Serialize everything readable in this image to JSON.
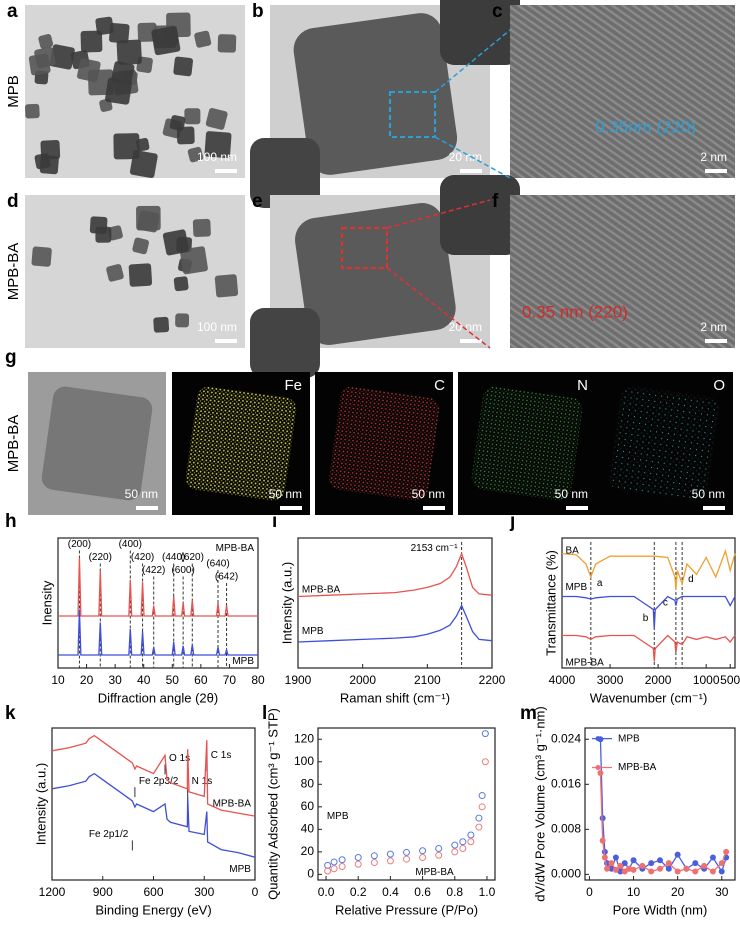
{
  "figure": {
    "rows": [
      {
        "label": "MPB",
        "panels": [
          {
            "letter": "a",
            "scale_bar": "100 nm"
          },
          {
            "letter": "b",
            "scale_bar": "20 nm"
          },
          {
            "letter": "c",
            "scale_bar": "2 nm",
            "annotation": "0.35nm (220)"
          }
        ]
      },
      {
        "label": "MPB-BA",
        "panels": [
          {
            "letter": "d",
            "scale_bar": "100 nm"
          },
          {
            "letter": "e",
            "scale_bar": "20 nm"
          },
          {
            "letter": "f",
            "scale_bar": "2 nm",
            "annotation": "0.35 nm  (220)"
          }
        ]
      },
      {
        "label": "MPB-BA",
        "letter": "g",
        "panels": [
          {
            "scale_bar": "50 nm"
          },
          {
            "element": "Fe",
            "scale_bar": "50 nm"
          },
          {
            "element": "C",
            "scale_bar": "50 nm"
          },
          {
            "element": "N",
            "scale_bar": "50 nm"
          },
          {
            "element": "O",
            "scale_bar": "50 nm"
          }
        ]
      }
    ]
  },
  "chart_data": [
    {
      "type": "line",
      "letter": "h",
      "x_label": "Diffraction angle (2θ)",
      "y_label": "Inensity",
      "xlim": [
        10,
        80
      ],
      "xticks": [
        10,
        20,
        30,
        40,
        50,
        60,
        70,
        80
      ],
      "ylim": [
        0,
        100
      ],
      "x": [
        10,
        17,
        17.5,
        18,
        24.3,
        24.8,
        25.3,
        34.8,
        35.3,
        35.8,
        39.1,
        39.6,
        40.1,
        43,
        43.5,
        44,
        50,
        50.5,
        51,
        53.3,
        53.8,
        54.3,
        56.5,
        57,
        57.5,
        65.5,
        66,
        66.5,
        68.5,
        69,
        69.5,
        80
      ],
      "series": [
        {
          "name": "MPB-BA",
          "color": "#e8534f",
          "values": [
            40,
            40,
            85,
            40,
            40,
            75,
            40,
            40,
            68,
            40,
            40,
            66,
            40,
            40,
            48,
            40,
            40,
            55,
            40,
            40,
            50,
            40,
            40,
            52,
            40,
            40,
            50,
            40,
            40,
            48,
            40,
            40
          ]
        },
        {
          "name": "MPB",
          "color": "#3f4fd8",
          "values": [
            10,
            10,
            45,
            10,
            10,
            35,
            10,
            10,
            30,
            10,
            10,
            28,
            10,
            10,
            16,
            10,
            10,
            20,
            10,
            10,
            17,
            10,
            10,
            18,
            10,
            10,
            16,
            10,
            10,
            14,
            10,
            10
          ]
        }
      ],
      "annotations": [
        {
          "text": "(200)",
          "x": 17.5
        },
        {
          "text": "(220)",
          "x": 24.8
        },
        {
          "text": "(400)",
          "x": 35.3
        },
        {
          "text": "(420)",
          "x": 39.6
        },
        {
          "text": "(422)",
          "x": 43.5
        },
        {
          "text": "(440)",
          "x": 50.5
        },
        {
          "text": "(600)",
          "x": 53.8
        },
        {
          "text": "(620)",
          "x": 57
        },
        {
          "text": "(640)",
          "x": 66
        },
        {
          "text": "(642)",
          "x": 69
        }
      ]
    },
    {
      "type": "line",
      "letter": "i",
      "x_label": "Raman shift (cm⁻¹)",
      "y_label": "Intensity (a.u.)",
      "xlim": [
        1900,
        2200
      ],
      "xticks": [
        1900,
        2000,
        2100,
        2200
      ],
      "ylim": [
        0,
        100
      ],
      "x": [
        1900,
        1950,
        2000,
        2050,
        2080,
        2100,
        2120,
        2135,
        2145,
        2153,
        2160,
        2170,
        2180,
        2200
      ],
      "series": [
        {
          "name": "MPB-BA",
          "color": "#e8534f",
          "values": [
            55,
            56,
            57,
            58,
            60,
            62,
            65,
            70,
            78,
            88,
            78,
            62,
            57,
            56
          ]
        },
        {
          "name": "MPB",
          "color": "#3f4fd8",
          "values": [
            20,
            21,
            22,
            23,
            24,
            26,
            29,
            33,
            40,
            48,
            40,
            28,
            22,
            21
          ]
        }
      ],
      "annotations": [
        {
          "text": "2153 cm⁻¹",
          "x": 2153
        }
      ]
    },
    {
      "type": "line",
      "letter": "j",
      "x_label": "Wavenumber (cm⁻¹)",
      "y_label": "Transmittance (%)",
      "xlim": [
        4000,
        400
      ],
      "xticks": [
        4000,
        3000,
        2000,
        1000,
        500
      ],
      "ylim": [
        0,
        100
      ],
      "x": [
        4000,
        3700,
        3500,
        3400,
        3300,
        3000,
        2500,
        2100,
        2080,
        2060,
        1800,
        1650,
        1630,
        1600,
        1500,
        1400,
        1200,
        1000,
        800,
        600,
        500,
        400
      ],
      "series": [
        {
          "name": "BA",
          "color": "#f0a030",
          "values": [
            88,
            87,
            80,
            70,
            80,
            86,
            86,
            86,
            86,
            86,
            85,
            70,
            60,
            75,
            65,
            80,
            72,
            85,
            70,
            90,
            75,
            88
          ]
        },
        {
          "name": "MPB",
          "color": "#3f4fd8",
          "values": [
            55,
            55,
            54,
            53,
            54,
            55,
            55,
            45,
            30,
            45,
            55,
            52,
            48,
            53,
            55,
            55,
            55,
            55,
            55,
            55,
            48,
            55
          ]
        },
        {
          "name": "MPB-BA",
          "color": "#e8534f",
          "values": [
            25,
            25,
            24,
            22,
            24,
            25,
            25,
            15,
            5,
            15,
            25,
            20,
            12,
            20,
            18,
            24,
            22,
            24,
            22,
            24,
            20,
            25
          ]
        }
      ],
      "annotations": [
        {
          "text": "a",
          "x": 3400
        },
        {
          "text": "b",
          "x": 2080
        },
        {
          "text": "c",
          "x": 1630
        },
        {
          "text": "d",
          "x": 1500
        }
      ]
    },
    {
      "type": "line",
      "letter": "k",
      "x_label": "Binding Energy (eV)",
      "y_label": "Intensity (a.u.)",
      "xlim": [
        1200,
        0
      ],
      "xticks": [
        1200,
        900,
        600,
        300,
        0
      ],
      "ylim": [
        0,
        100
      ],
      "x": [
        1200,
        1100,
        1000,
        980,
        950,
        900,
        800,
        725,
        710,
        700,
        600,
        532,
        520,
        500,
        400,
        398,
        390,
        300,
        285,
        280,
        200,
        100,
        0
      ],
      "series": [
        {
          "name": "MPB-BA",
          "color": "#e8534f",
          "values": [
            85,
            87,
            90,
            93,
            95,
            91,
            83,
            77,
            73,
            75,
            70,
            82,
            66,
            64,
            60,
            86,
            58,
            55,
            92,
            50,
            46,
            44,
            42
          ]
        },
        {
          "name": "MPB",
          "color": "#3f4fd8",
          "values": [
            60,
            62,
            65,
            68,
            70,
            66,
            58,
            52,
            48,
            50,
            45,
            50,
            40,
            38,
            35,
            55,
            32,
            30,
            45,
            25,
            20,
            18,
            15
          ]
        }
      ],
      "annotations": [
        {
          "text": "Fe 2p1/2",
          "x": 725
        },
        {
          "text": "Fe 2p3/2",
          "x": 710
        },
        {
          "text": "O 1s",
          "x": 532
        },
        {
          "text": "N 1s",
          "x": 398
        },
        {
          "text": "C 1s",
          "x": 285
        }
      ]
    },
    {
      "type": "scatter",
      "letter": "l",
      "x_label": "Relative Pressure (P/Po)",
      "y_label": "Quantity Adsorbed (cm³ g⁻¹ STP)",
      "xlim": [
        -0.05,
        1.05
      ],
      "xticks": [
        {
          "value": 0,
          "label": "0.0"
        },
        0.2,
        0.4,
        0.6,
        0.8,
        {
          "value": 1,
          "label": "1.0"
        }
      ],
      "ylim": [
        -5,
        130
      ],
      "yticks": [
        0,
        20,
        40,
        60,
        80,
        100,
        120
      ],
      "x": [
        0.01,
        0.05,
        0.1,
        0.2,
        0.3,
        0.4,
        0.5,
        0.6,
        0.7,
        0.8,
        0.85,
        0.9,
        0.95,
        0.97,
        0.99
      ],
      "series": [
        {
          "name": "MPB",
          "color": "#5a78e0",
          "values": [
            8,
            11,
            13,
            15,
            16.5,
            18,
            19.5,
            21,
            23,
            26,
            29,
            35,
            50,
            70,
            125
          ]
        },
        {
          "name": "MPB-BA",
          "color": "#ee7d7d",
          "values": [
            3,
            5,
            7,
            9,
            10.5,
            12,
            13.5,
            15,
            17,
            20,
            23,
            29,
            42,
            60,
            100
          ]
        }
      ]
    },
    {
      "type": "line",
      "letter": "m",
      "x_label": "Pore Width (nm)",
      "y_label": "dV/dW Pore Volume (cm³ g⁻¹·nm)",
      "markers": true,
      "legend": true,
      "xlim": [
        -1,
        33
      ],
      "xticks": [
        0,
        10,
        20,
        30
      ],
      "ylim": [
        -0.001,
        0.026
      ],
      "yticks": [
        {
          "value": 0,
          "label": "0.000"
        },
        0.008,
        0.016,
        0.024
      ],
      "x": [
        2.5,
        3,
        3.5,
        4,
        5,
        6,
        7,
        8,
        9,
        10,
        12,
        14,
        16,
        18,
        20,
        22,
        24,
        26,
        28,
        30,
        31
      ],
      "series": [
        {
          "name": "MPB",
          "color": "#4a5ee0",
          "values": [
            0.024,
            0.01,
            0.004,
            0.002,
            0.001,
            0.003,
            0.0005,
            0.002,
            0.001,
            0.0025,
            0.001,
            0.002,
            0.0025,
            0.001,
            0.0035,
            0.001,
            0.002,
            0.001,
            0.003,
            0.0005,
            0.003
          ]
        },
        {
          "name": "MPB-BA",
          "color": "#ee7070",
          "values": [
            0.018,
            0.006,
            0.003,
            0.001,
            0.002,
            0.0008,
            0.0015,
            0.0005,
            0.001,
            0.0008,
            0.0015,
            0.0005,
            0.001,
            0.002,
            0.0005,
            0.001,
            0.0005,
            0.0015,
            0.0005,
            0.002,
            0.004
          ]
        }
      ]
    }
  ]
}
